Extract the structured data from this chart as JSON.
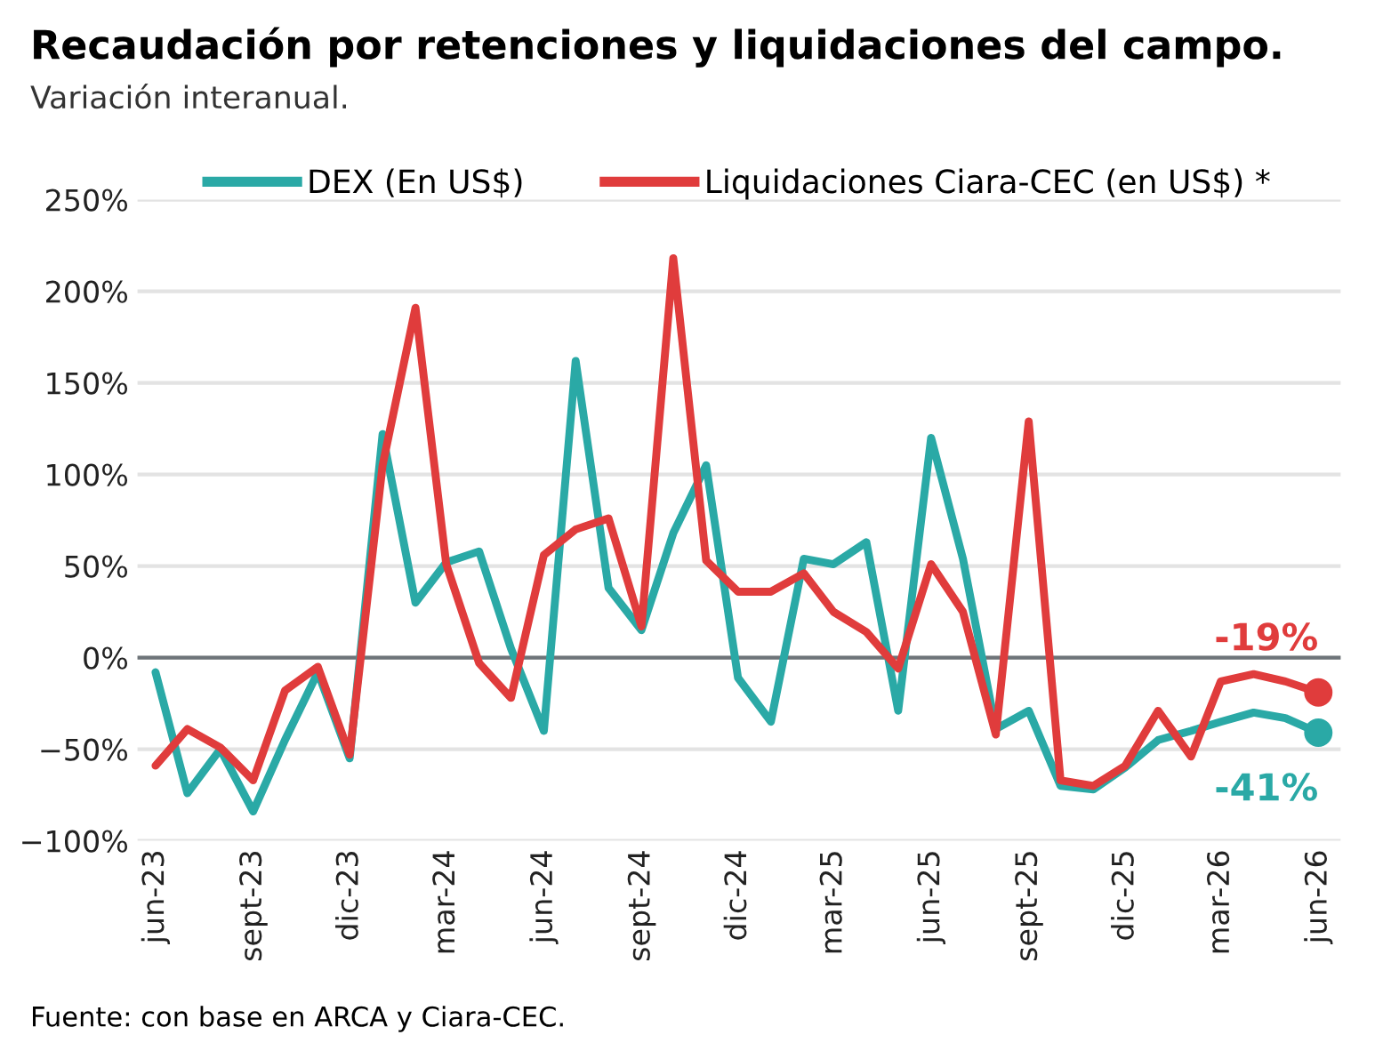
{
  "chart_data": {
    "type": "line",
    "title": "Recaudación por retenciones y liquidaciones del campo.",
    "subtitle": "Variación interanual.",
    "x": [
      "2023-06",
      "2023-07",
      "2023-08",
      "2023-09",
      "2023-10",
      "2023-11",
      "2023-12",
      "2024-01",
      "2024-02",
      "2024-03",
      "2024-04",
      "2024-05",
      "2024-06",
      "2024-07",
      "2024-08",
      "2024-09",
      "2024-10",
      "2024-11",
      "2024-12",
      "2025-01",
      "2025-02",
      "2025-03",
      "2025-04",
      "2025-05",
      "2025-06",
      "2025-07",
      "2025-08",
      "2025-09",
      "2025-10",
      "2025-11",
      "2025-12",
      "2026-01",
      "2026-02",
      "2026-03",
      "2026-04",
      "2026-05",
      "2026-06"
    ],
    "series": [
      {
        "name": "DEX (En US$)",
        "color": "#2aa9a6",
        "values": [
          -8,
          -74,
          -50,
          -84,
          -45,
          -8,
          -55,
          122,
          30,
          52,
          58,
          5,
          -40,
          162,
          38,
          15,
          68,
          105,
          -11,
          -35,
          54,
          51,
          63,
          -29,
          120,
          54,
          -39,
          -29,
          -70,
          -72,
          -60,
          -45,
          -40,
          -35,
          -30,
          -33,
          -41
        ],
        "value_labels": [
          null,
          null,
          null,
          null,
          null,
          null,
          null,
          null,
          null,
          null,
          null,
          null,
          null,
          null,
          null,
          null,
          null,
          null,
          null,
          null,
          null,
          null,
          null,
          null,
          null,
          null,
          null,
          null,
          null,
          null,
          null,
          null,
          null,
          null,
          null,
          null,
          "-41%"
        ]
      },
      {
        "name": "Liquidaciones Ciara-CEC (en US$) *",
        "color": "#e03c3c",
        "values": [
          -59,
          -39,
          -49,
          -67,
          -18,
          -5,
          -53,
          105,
          191,
          51,
          -3,
          -22,
          56,
          70,
          76,
          17,
          218,
          53,
          36,
          36,
          46,
          25,
          14,
          -6,
          51,
          25,
          -42,
          129,
          -67,
          -70,
          -59,
          -29,
          -54,
          -13,
          -9,
          -13,
          -19
        ],
        "value_labels": [
          null,
          null,
          null,
          null,
          null,
          null,
          null,
          null,
          null,
          null,
          null,
          null,
          null,
          null,
          null,
          null,
          null,
          null,
          null,
          null,
          null,
          null,
          null,
          null,
          null,
          null,
          null,
          null,
          null,
          null,
          null,
          null,
          null,
          null,
          null,
          null,
          "-19%"
        ]
      }
    ],
    "xlim": [
      "2023-05-15",
      "2026-06-22"
    ],
    "xticks": [
      {
        "value": "2023-06",
        "label": "jun-23"
      },
      {
        "value": "2023-09",
        "label": "sept-23"
      },
      {
        "value": "2023-12",
        "label": "dic-23"
      },
      {
        "value": "2024-03",
        "label": "mar-24"
      },
      {
        "value": "2024-06",
        "label": "jun-24"
      },
      {
        "value": "2024-09",
        "label": "sept-24"
      },
      {
        "value": "2024-12",
        "label": "dic-24"
      },
      {
        "value": "2025-03",
        "label": "mar-25"
      },
      {
        "value": "2025-06",
        "label": "jun-25"
      },
      {
        "value": "2025-09",
        "label": "sept-25"
      },
      {
        "value": "2025-12",
        "label": "dic-25"
      },
      {
        "value": "2026-03",
        "label": "mar-26"
      },
      {
        "value": "2026-06",
        "label": "jun-26"
      }
    ],
    "ylim": [
      -100,
      250
    ],
    "yticks": [
      {
        "value": -100,
        "label": "−100%"
      },
      {
        "value": -50,
        "label": "−50%"
      },
      {
        "value": 0,
        "label": "0%"
      },
      {
        "value": 50,
        "label": "50%"
      },
      {
        "value": 100,
        "label": "100%"
      },
      {
        "value": 150,
        "label": "150%"
      },
      {
        "value": 200,
        "label": "200%"
      },
      {
        "value": 250,
        "label": "250%"
      }
    ],
    "ref_lines": [
      {
        "axis": "y",
        "value": 0,
        "color": "#6e7479"
      }
    ],
    "grid": "y",
    "legend": "top",
    "marker": "none",
    "line_style": "solid",
    "annotations": [
      "Fuente: con base en ARCA y Ciara-CEC."
    ]
  }
}
